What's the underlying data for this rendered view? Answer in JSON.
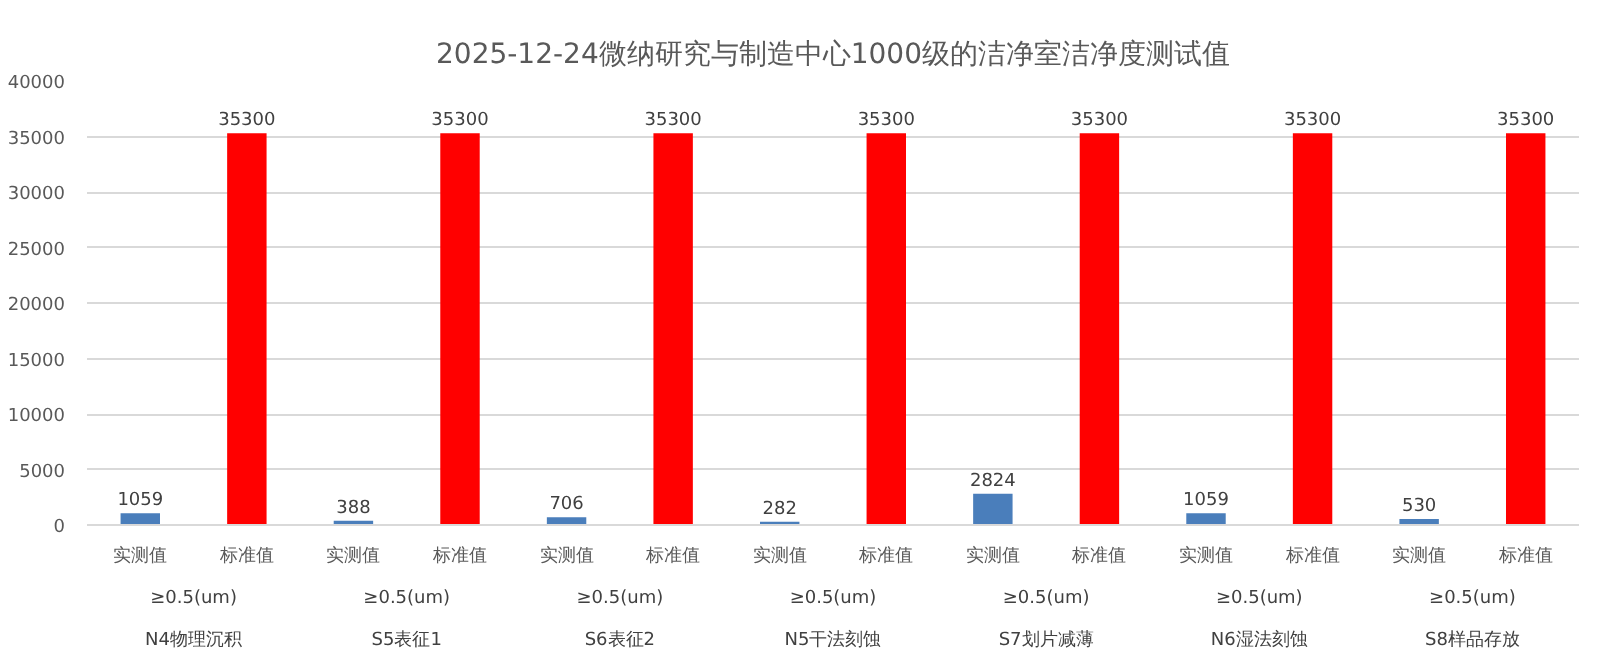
{
  "chart_data": {
    "type": "bar",
    "title": "2025-12-24微纳研究与制造中心1000级的洁净室洁净度测试值",
    "categories": [
      "实测值",
      "标准值",
      "实测值",
      "标准值",
      "实测值",
      "标准值",
      "实测值",
      "标准值",
      "实测值",
      "标准值",
      "实测值",
      "标准值",
      "实测值",
      "标准值"
    ],
    "values": [
      1059,
      35300,
      388,
      35300,
      706,
      35300,
      282,
      35300,
      2824,
      35300,
      1059,
      35300,
      530,
      35300
    ],
    "colors": [
      "#4a7ebb",
      "#ff0000",
      "#4a7ebb",
      "#ff0000",
      "#4a7ebb",
      "#ff0000",
      "#4a7ebb",
      "#ff0000",
      "#4a7ebb",
      "#ff0000",
      "#4a7ebb",
      "#ff0000",
      "#4a7ebb",
      "#ff0000"
    ],
    "data_labels": true,
    "ylim": [
      0,
      40000
    ],
    "yticks": [
      0,
      5000,
      10000,
      15000,
      20000,
      25000,
      30000,
      35000,
      40000
    ],
    "grid": "y",
    "annotations": [
      "≥0.5(um)",
      "≥0.5(um)",
      "≥0.5(um)",
      "≥0.5(um)",
      "≥0.5(um)",
      "≥0.5(um)",
      "≥0.5(um)",
      "N4物理沉积",
      "S5表征1",
      "S6表征2",
      "N5干法刻蚀",
      "S7划片减薄",
      "N6湿法刻蚀",
      "S8样品存放"
    ]
  }
}
